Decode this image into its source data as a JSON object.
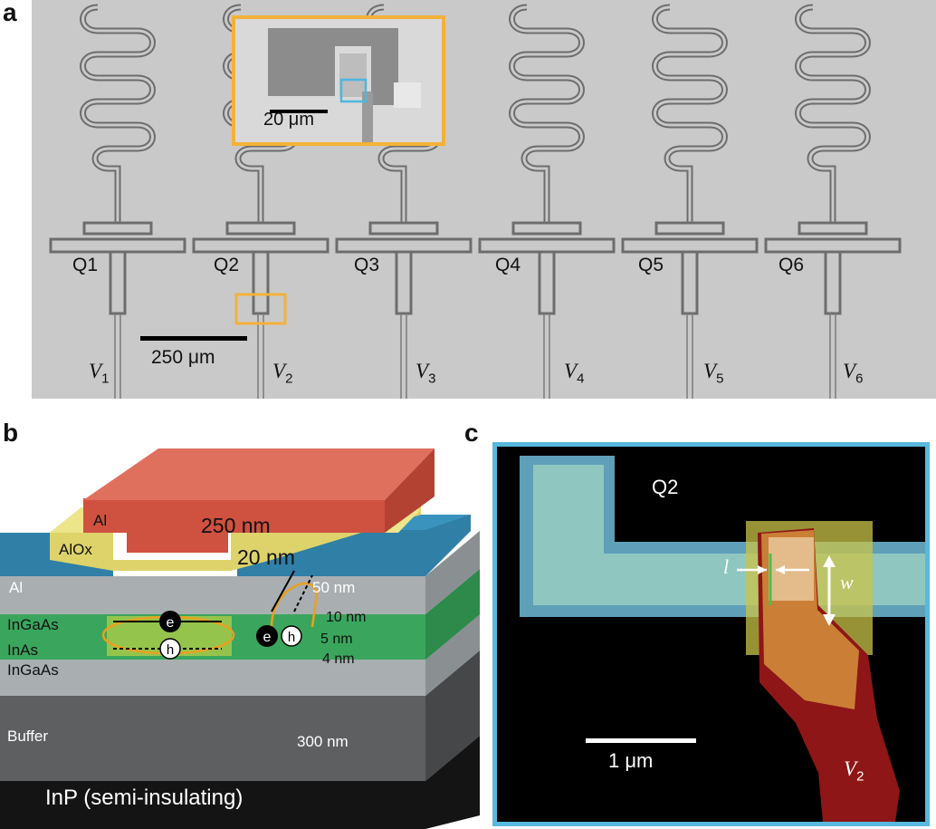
{
  "panel_a": {
    "letter": "a",
    "qubits": [
      "Q1",
      "Q2",
      "Q3",
      "Q4",
      "Q5",
      "Q6"
    ],
    "gates": [
      {
        "name": "V",
        "sub": "1"
      },
      {
        "name": "V",
        "sub": "2"
      },
      {
        "name": "V",
        "sub": "3"
      },
      {
        "name": "V",
        "sub": "4"
      },
      {
        "name": "V",
        "sub": "5"
      },
      {
        "name": "V",
        "sub": "6"
      }
    ],
    "scale_bar": "250 μm",
    "inset_scale_bar": "20 μm",
    "colors": {
      "background": "#c8c8c8",
      "highlight_orange": "#f4b13a",
      "highlight_blue": "#4fb6e0"
    }
  },
  "panel_b": {
    "letter": "b",
    "layers": {
      "top_al": "Al",
      "top_al_thickness": "250 nm",
      "aloх": "AlOx",
      "alox_thickness": "20 nm",
      "al": "Al",
      "al_thickness": "50 nm",
      "ingaas_top": "InGaAs",
      "ingaas_top_thickness": "10 nm",
      "inas": "InAs",
      "inas_thickness": "5 nm",
      "ingaas_bottom": "InGaAs",
      "ingaas_bottom_thickness": "4 nm",
      "buffer": "Buffer",
      "buffer_thickness": "300 nm",
      "substrate": "InP (semi-insulating)"
    },
    "electron": "e",
    "hole": "h",
    "colors": {
      "al_red": "#cf5140",
      "alox_yellow": "#ddd36a",
      "al_blue": "#2f7fa6",
      "ingaas_gray": "#a9afb1",
      "inas_green": "#3aa65d",
      "buffer_dark": "#5d5f61",
      "substrate_black": "#141414"
    }
  },
  "panel_c": {
    "letter": "c",
    "qubit": "Q2",
    "length_symbol": "l",
    "width_symbol": "w",
    "scale_bar": "1 μm",
    "gate": {
      "name": "V",
      "sub": "2"
    },
    "colors": {
      "border": "#58b8de",
      "lead_cyan": "#8fc7c0",
      "gate_red": "#8e1616",
      "overlay_yellow": "#c9c348"
    }
  }
}
